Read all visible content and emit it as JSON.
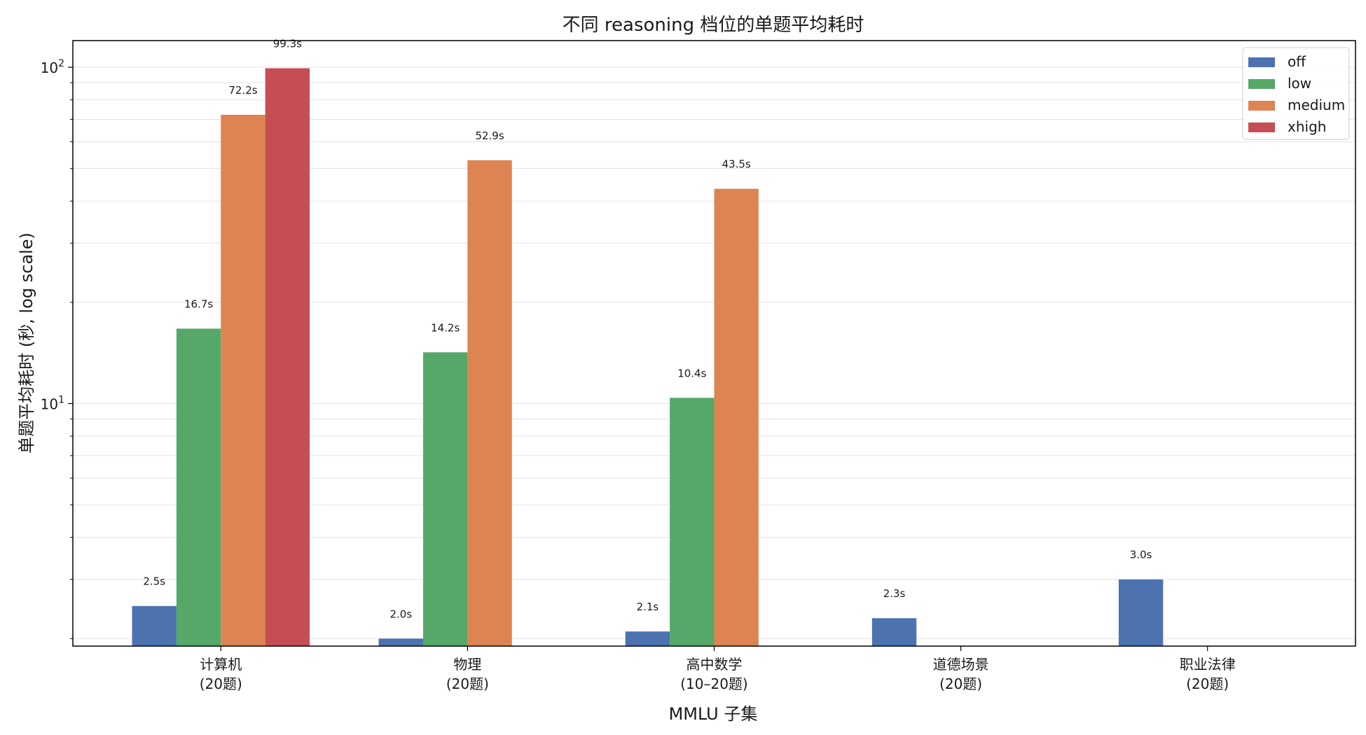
{
  "chart_data": {
    "type": "bar",
    "title": "不同 reasoning 档位的单题平均耗时",
    "xlabel": "MMLU 子集",
    "ylabel": "单题平均耗时 (秒, log scale)",
    "yscale": "log",
    "ylim": [
      1.9,
      120
    ],
    "yticks": [
      {
        "value": 10,
        "base": "10",
        "exp": "1"
      },
      {
        "value": 100,
        "base": "10",
        "exp": "2"
      }
    ],
    "grid": true,
    "legend_position": "top-right",
    "categories": [
      {
        "line1": "计算机",
        "line2": "(20题)"
      },
      {
        "line1": "物理",
        "line2": "(20题)"
      },
      {
        "line1": "高中数学",
        "line2": "(10–20题)"
      },
      {
        "line1": "道德场景",
        "line2": "(20题)"
      },
      {
        "line1": "职业法律",
        "line2": "(20题)"
      }
    ],
    "series": [
      {
        "name": "off",
        "color": "#4c72b0",
        "values": [
          2.5,
          2.0,
          2.1,
          2.3,
          3.0
        ],
        "labels": [
          "2.5s",
          "2.0s",
          "2.1s",
          "2.3s",
          "3.0s"
        ]
      },
      {
        "name": "low",
        "color": "#55a868",
        "values": [
          16.7,
          14.2,
          10.4,
          null,
          null
        ],
        "labels": [
          "16.7s",
          "14.2s",
          "10.4s",
          null,
          null
        ]
      },
      {
        "name": "medium",
        "color": "#dd8452",
        "values": [
          72.2,
          52.9,
          43.5,
          null,
          null
        ],
        "labels": [
          "72.2s",
          "52.9s",
          "43.5s",
          null,
          null
        ]
      },
      {
        "name": "xhigh",
        "color": "#c44e52",
        "values": [
          99.3,
          null,
          null,
          null,
          null
        ],
        "labels": [
          "99.3s",
          null,
          null,
          null,
          null
        ]
      }
    ]
  }
}
